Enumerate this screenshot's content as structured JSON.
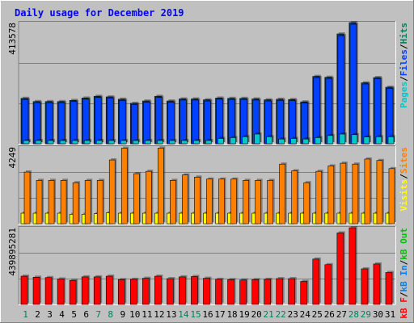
{
  "title": "Daily usage for December 2019",
  "colors": {
    "background": "#c0c0c0",
    "title": "#0000ff",
    "hits": "#00805c",
    "files": "#0040ff",
    "pages": "#00c8c8",
    "visits": "#ffff00",
    "sites": "#ff8000",
    "kbin": "#0080ff",
    "kbout": "#00c000",
    "kbf": "#ff0000",
    "weekend_day": "#00805c",
    "weekday": "#000000"
  },
  "panels": {
    "hits": {
      "max_label": "413578",
      "legend": [
        {
          "text": "Pages",
          "color_key": "pages"
        },
        {
          "text": "/",
          "color_key": "weekday"
        },
        {
          "text": "Files",
          "color_key": "files"
        },
        {
          "text": "/",
          "color_key": "weekday"
        },
        {
          "text": "Hits",
          "color_key": "hits"
        }
      ]
    },
    "visits": {
      "max_label": "4249",
      "legend": [
        {
          "text": "Visits",
          "color_key": "visits"
        },
        {
          "text": "/",
          "color_key": "weekday"
        },
        {
          "text": "Sites",
          "color_key": "sites"
        }
      ]
    },
    "kbytes": {
      "max_label": "439895281",
      "legend": [
        {
          "text": "kB F",
          "color_key": "kbf"
        },
        {
          "text": "/",
          "color_key": "weekday"
        },
        {
          "text": "kB In",
          "color_key": "kbin"
        },
        {
          "text": "/",
          "color_key": "weekday"
        },
        {
          "text": "kB Out",
          "color_key": "kbout"
        }
      ]
    }
  },
  "chart_data": {
    "type": "bar",
    "title": "Daily usage for December 2019",
    "categories": [
      "1",
      "2",
      "3",
      "4",
      "5",
      "6",
      "7",
      "8",
      "9",
      "10",
      "11",
      "12",
      "13",
      "14",
      "15",
      "16",
      "17",
      "18",
      "19",
      "20",
      "21",
      "22",
      "23",
      "24",
      "25",
      "26",
      "27",
      "28",
      "29",
      "30",
      "31"
    ],
    "weekend_days": [
      "1",
      "7",
      "8",
      "14",
      "15",
      "21",
      "22",
      "28",
      "29"
    ],
    "panels": [
      {
        "name": "hits",
        "ylim": [
          0,
          413578
        ],
        "series": [
          {
            "name": "Hits",
            "values": [
              155000,
              144000,
              144000,
              144000,
              148000,
              156000,
              162000,
              160000,
              152000,
              138000,
              146000,
              162000,
              146000,
              153000,
              153000,
              150000,
              156000,
              155000,
              155000,
              153000,
              150000,
              152000,
              151000,
              143000,
              230000,
              227000,
              375000,
              413578,
              208000,
              226000,
              193000
            ]
          },
          {
            "name": "Files",
            "values": [
              151000,
              140000,
              140000,
              140000,
              144000,
              152000,
              158000,
              156000,
              148000,
              134000,
              142000,
              158000,
              142000,
              149000,
              149000,
              146000,
              152000,
              151000,
              151000,
              149000,
              146000,
              148000,
              147000,
              139000,
              226000,
              223000,
              369000,
              408000,
              204000,
              222000,
              189000
            ]
          },
          {
            "name": "Pages",
            "values": [
              11000,
              11000,
              11000,
              11000,
              11000,
              11000,
              11000,
              11000,
              11000,
              11000,
              11000,
              11000,
              11000,
              11000,
              11000,
              11000,
              18000,
              21000,
              24000,
              33000,
              24000,
              16000,
              18000,
              16000,
              21000,
              28000,
              33000,
              31000,
              23000,
              24000,
              24000
            ]
          }
        ]
      },
      {
        "name": "visits",
        "ylim": [
          0,
          4249
        ],
        "series": [
          {
            "name": "Sites",
            "values": [
              2860,
              2400,
              2400,
              2400,
              2270,
              2400,
              2400,
              3530,
              4180,
              2770,
              2900,
              4190,
              2400,
              2700,
              2580,
              2470,
              2470,
              2470,
              2400,
              2400,
              2400,
              3300,
              2930,
              2270,
              2900,
              3200,
              3350,
              3300,
              3580,
              3500,
              3050
            ]
          },
          {
            "name": "Visits",
            "values": [
              580,
              580,
              580,
              580,
              520,
              520,
              550,
              600,
              580,
              580,
              580,
              580,
              580,
              580,
              580,
              580,
              580,
              580,
              580,
              580,
              580,
              580,
              580,
              580,
              580,
              580,
              580,
              580,
              580,
              580,
              580
            ]
          }
        ]
      },
      {
        "name": "kbytes",
        "ylim": [
          0,
          439895281
        ],
        "series": [
          {
            "name": "kB F",
            "values": [
              162000000,
              156000000,
              154000000,
              146000000,
              138000000,
              158000000,
              158000000,
              162000000,
              142000000,
              144000000,
              150000000,
              162000000,
              148000000,
              158000000,
              160000000,
              150000000,
              144000000,
              142000000,
              140000000,
              142000000,
              144000000,
              148000000,
              148000000,
              132000000,
              260000000,
              228000000,
              410000000,
              439895281,
              204000000,
              232000000,
              183000000
            ]
          }
        ]
      }
    ]
  }
}
